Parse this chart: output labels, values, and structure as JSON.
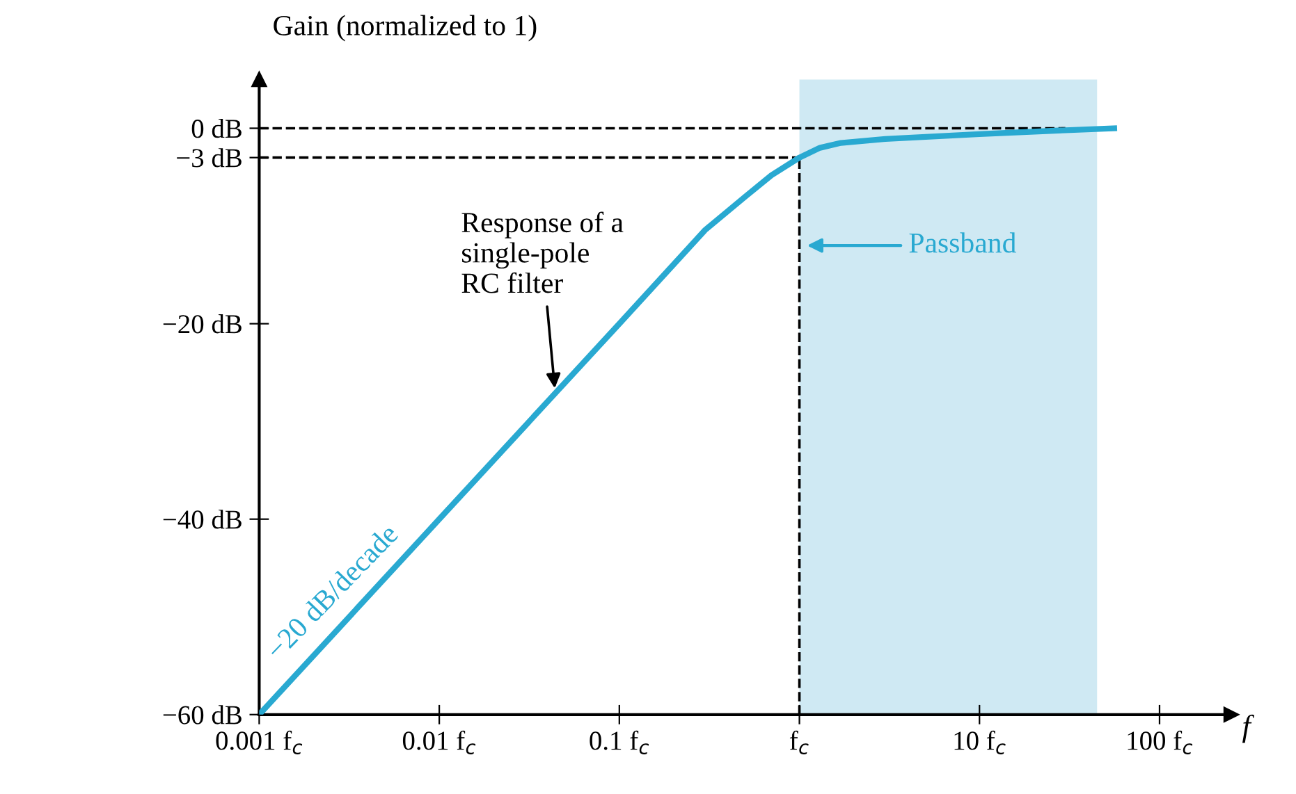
{
  "chart_data": {
    "type": "line",
    "ylabel": "Gain (normalized to 1)",
    "xlabel": "f",
    "log": "x",
    "x": [
      0.001,
      0.01,
      0.1,
      0.3,
      0.5,
      0.7,
      1,
      1.3,
      1.7,
      3,
      10,
      30,
      56
    ],
    "series": [
      {
        "color": "#29a9d1",
        "values": [
          -60,
          -40,
          -20,
          -10.4,
          -7,
          -4.8,
          -3,
          -2,
          -1.5,
          -1.1,
          -0.6,
          -0.2,
          0
        ]
      }
    ],
    "xlim": [
      0.001,
      250
    ],
    "ylim": [
      -60,
      5
    ],
    "xticks": [
      {
        "value": 0.001,
        "label": "0.001 f$_{c}$"
      },
      {
        "value": 0.01,
        "label": "0.01 f$_{c}$"
      },
      {
        "value": 0.1,
        "label": "0.1 f$_{c}$"
      },
      {
        "value": 1,
        "label": "f$_{c}$"
      },
      {
        "value": 10,
        "label": "10 f$_{c}$"
      },
      {
        "value": 100,
        "label": "100 f$_{c}$"
      }
    ],
    "yticks": [
      {
        "value": 0,
        "label": "0 dB"
      },
      {
        "value": -3,
        "label": "−3 dB"
      },
      {
        "value": -20,
        "label": "−20 dB"
      },
      {
        "value": -40,
        "label": "−40 dB"
      },
      {
        "value": -60,
        "label": "−60 dB"
      }
    ],
    "ref_lines": [
      {
        "axis": "y",
        "value": 0,
        "color": "#000000",
        "line_style": "dashed"
      },
      {
        "axis": "y",
        "value": -3,
        "color": "#000000",
        "line_style": "dashed"
      },
      {
        "axis": "x",
        "value": 1,
        "color": "#000000",
        "line_style": "dashed"
      }
    ],
    "bands": [
      {
        "axis": "x",
        "from": 1,
        "to": 45,
        "label": "Passband",
        "color": "#cfe9f3"
      }
    ],
    "annotations": [
      {
        "text": "Response of a\nsingle-pole\nRC filter",
        "x": 0.044,
        "y": -27
      },
      "−20 dB/decade"
    ],
    "grid": false,
    "legend": false,
    "marker": "none",
    "line_style": "solid"
  }
}
